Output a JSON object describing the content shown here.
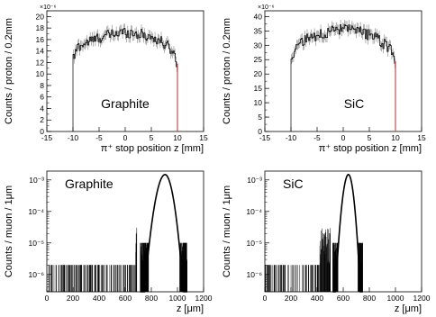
{
  "chart_data": [
    {
      "type": "line",
      "material": "Graphite",
      "xlabel": "π⁺ stop position  z [mm]",
      "ylabel": "Counts / proton / 0.2mm",
      "multiplier": "×10⁻⁶",
      "xlim": [
        -15,
        15
      ],
      "ylim": [
        0,
        21
      ],
      "xticks": [
        "-15",
        "-10",
        "-5",
        "0",
        "5",
        "10",
        "15"
      ],
      "yticks": [
        "0",
        "2",
        "4",
        "6",
        "8",
        "10",
        "12",
        "14",
        "16",
        "18",
        "20"
      ],
      "ytick_values": [
        0,
        2,
        4,
        6,
        8,
        10,
        12,
        14,
        16,
        18,
        20
      ],
      "xtick_values": [
        -15,
        -10,
        -5,
        0,
        5,
        10,
        15
      ],
      "log_y": false,
      "range": [
        -10,
        10
      ],
      "profile": [
        {
          "x": -10,
          "y": 12.5
        },
        {
          "x": -9,
          "y": 14.8
        },
        {
          "x": -7,
          "y": 15.6
        },
        {
          "x": -5,
          "y": 16.3
        },
        {
          "x": -3,
          "y": 16.8
        },
        {
          "x": -1,
          "y": 17.2
        },
        {
          "x": 0,
          "y": 17.3
        },
        {
          "x": 1,
          "y": 17.2
        },
        {
          "x": 3,
          "y": 16.9
        },
        {
          "x": 5,
          "y": 16.4
        },
        {
          "x": 7,
          "y": 15.6
        },
        {
          "x": 9,
          "y": 14.2
        },
        {
          "x": 10,
          "y": 11.8
        }
      ],
      "edge_color": "#c0504d"
    },
    {
      "type": "line",
      "material": "SiC",
      "xlabel": "π⁺ stop position  z [mm]",
      "ylabel": "Counts / proton / 0.2mm",
      "multiplier": "×10⁻⁶",
      "xlim": [
        -15,
        15
      ],
      "ylim": [
        0,
        42
      ],
      "xticks": [
        "-15",
        "-10",
        "-5",
        "0",
        "5",
        "10",
        "15"
      ],
      "yticks": [
        "0",
        "5",
        "10",
        "15",
        "20",
        "25",
        "30",
        "35",
        "40"
      ],
      "ytick_values": [
        0,
        5,
        10,
        15,
        20,
        25,
        30,
        35,
        40
      ],
      "xtick_values": [
        -15,
        -10,
        -5,
        0,
        5,
        10,
        15
      ],
      "log_y": false,
      "range": [
        -10,
        10
      ],
      "profile": [
        {
          "x": -10,
          "y": 25
        },
        {
          "x": -9,
          "y": 29.5
        },
        {
          "x": -7,
          "y": 32
        },
        {
          "x": -5,
          "y": 33.5
        },
        {
          "x": -3,
          "y": 34.6
        },
        {
          "x": -1,
          "y": 35.3
        },
        {
          "x": 0,
          "y": 35.5
        },
        {
          "x": 1,
          "y": 35.3
        },
        {
          "x": 3,
          "y": 34.7
        },
        {
          "x": 5,
          "y": 33.6
        },
        {
          "x": 7,
          "y": 31.8
        },
        {
          "x": 9,
          "y": 28.5
        },
        {
          "x": 10,
          "y": 24.5
        }
      ],
      "edge_color": "#c0504d"
    },
    {
      "type": "line",
      "material": "Graphite",
      "xlabel": "z [μm]",
      "ylabel": "Counts / muon / 1μm",
      "xlim": [
        0,
        1200
      ],
      "xticks": [
        "0",
        "200",
        "400",
        "600",
        "800",
        "1000",
        "1200"
      ],
      "xtick_values": [
        0,
        200,
        400,
        600,
        800,
        1000,
        1200
      ],
      "yticks": [
        "10⁻⁶",
        "10⁻⁵",
        "10⁻⁴",
        "10⁻³"
      ],
      "ytick_values": [
        -6,
        -5,
        -4,
        -3
      ],
      "ylim_log10": [
        -6.55,
        -2.72
      ],
      "log_y": true,
      "peak": {
        "x": 905,
        "log10_y": -2.83,
        "sigma_left": 38,
        "sigma_right": 34
      },
      "noise_start": 0,
      "noise_end": 1020,
      "noise_dense_from": 680
    },
    {
      "type": "line",
      "material": "SiC",
      "xlabel": "z [μm]",
      "ylabel": "Counts / muon / 1μm",
      "xlim": [
        0,
        1200
      ],
      "xticks": [
        "0",
        "200",
        "400",
        "600",
        "800",
        "1000",
        "1200"
      ],
      "xtick_values": [
        0,
        200,
        400,
        600,
        800,
        1000,
        1200
      ],
      "yticks": [
        "10⁻⁶",
        "10⁻⁵",
        "10⁻⁴",
        "10⁻³"
      ],
      "ytick_values": [
        -6,
        -5,
        -4,
        -3
      ],
      "ylim_log10": [
        -6.55,
        -2.72
      ],
      "log_y": true,
      "peak": {
        "x": 640,
        "log10_y": -2.83,
        "sigma_left": 24,
        "sigma_right": 22
      },
      "noise_start": 0,
      "noise_end": 720,
      "noise_dense_from": 420
    }
  ]
}
